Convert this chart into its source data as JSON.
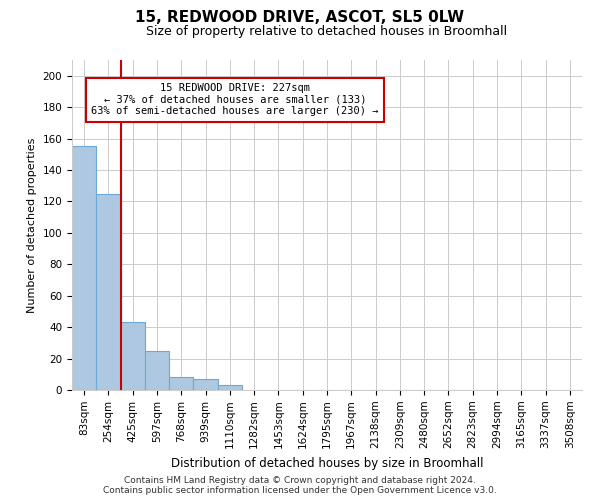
{
  "title": "15, REDWOOD DRIVE, ASCOT, SL5 0LW",
  "subtitle": "Size of property relative to detached houses in Broomhall",
  "xlabel": "Distribution of detached houses by size in Broomhall",
  "ylabel": "Number of detached properties",
  "bar_color": "#adc8e0",
  "bar_edge_color": "#6aaad4",
  "categories": [
    "83sqm",
    "254sqm",
    "425sqm",
    "597sqm",
    "768sqm",
    "939sqm",
    "1110sqm",
    "1282sqm",
    "1453sqm",
    "1624sqm",
    "1795sqm",
    "1967sqm",
    "2138sqm",
    "2309sqm",
    "2480sqm",
    "2652sqm",
    "2823sqm",
    "2994sqm",
    "3165sqm",
    "3337sqm",
    "3508sqm"
  ],
  "values": [
    155,
    125,
    43,
    25,
    8,
    7,
    3,
    0,
    0,
    0,
    0,
    0,
    0,
    0,
    0,
    0,
    0,
    0,
    0,
    0,
    0
  ],
  "ylim": [
    0,
    210
  ],
  "yticks": [
    0,
    20,
    40,
    60,
    80,
    100,
    120,
    140,
    160,
    180,
    200
  ],
  "property_line_x": 1.5,
  "property_line_color": "#cc0000",
  "annotation_text": "15 REDWOOD DRIVE: 227sqm\n← 37% of detached houses are smaller (133)\n63% of semi-detached houses are larger (230) →",
  "annotation_box_color": "#cc0000",
  "footer_line1": "Contains HM Land Registry data © Crown copyright and database right 2024.",
  "footer_line2": "Contains public sector information licensed under the Open Government Licence v3.0.",
  "background_color": "#ffffff",
  "grid_color": "#cccccc",
  "title_fontsize": 11,
  "subtitle_fontsize": 9,
  "ylabel_fontsize": 8,
  "xlabel_fontsize": 8.5,
  "tick_fontsize": 7.5,
  "annotation_fontsize": 7.5,
  "footer_fontsize": 6.5
}
